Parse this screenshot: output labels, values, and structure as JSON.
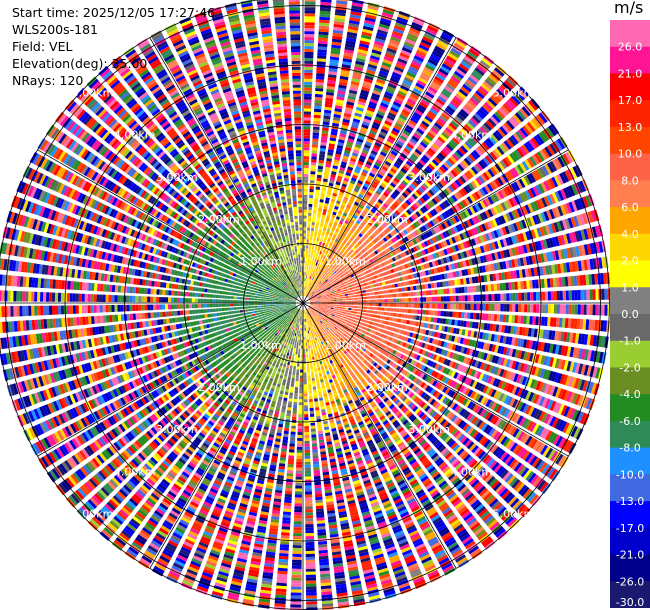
{
  "header": {
    "start_time": "Start time: 2025/12/05 17:27:46",
    "instrument": "WLS200s-181",
    "field": "Field: VEL",
    "elevation": "Elevation(deg): 35.00",
    "nrays": "NRays: 120"
  },
  "chart_data": {
    "type": "heatmap",
    "projection": "polar-ppi",
    "field": "VEL",
    "unit": "m/s",
    "nrays": 120,
    "elevation_deg": 35.0,
    "range_rings_km": [
      1,
      2,
      3,
      4,
      5
    ],
    "range_ring_labels": [
      "1.00km",
      "2.00km",
      "3.00km",
      "4.00km",
      "5.00km"
    ],
    "max_range_km": 5.15,
    "colorbar": {
      "unit": "m/s",
      "tick_labels": [
        "26.0",
        "21.0",
        "17.0",
        "13.0",
        "10.0",
        "8.0",
        "6.0",
        "4.0",
        "2.0",
        "1.0",
        "0.0",
        "-1.0",
        "-2.0",
        "-4.0",
        "-6.0",
        "-8.0",
        "-10.0",
        "-13.0",
        "-17.0",
        "-21.0",
        "-26.0",
        "-30.0"
      ],
      "bins": [
        {
          "max": 30,
          "color": "#ff69b4"
        },
        {
          "max": 26,
          "color": "#ff1493"
        },
        {
          "max": 21,
          "color": "#ff0000"
        },
        {
          "max": 17,
          "color": "#ff2400"
        },
        {
          "max": 13,
          "color": "#ff4500"
        },
        {
          "max": 10,
          "color": "#ff6347"
        },
        {
          "max": 8,
          "color": "#ff7f50"
        },
        {
          "max": 6,
          "color": "#ffa500"
        },
        {
          "max": 4,
          "color": "#ffd700"
        },
        {
          "max": 2,
          "color": "#ffff00"
        },
        {
          "max": 1,
          "color": "#808080"
        },
        {
          "max": 0,
          "color": "#696969"
        },
        {
          "max": -1,
          "color": "#9acd32"
        },
        {
          "max": -2,
          "color": "#6b8e23"
        },
        {
          "max": -4,
          "color": "#228b22"
        },
        {
          "max": -6,
          "color": "#2e8b57"
        },
        {
          "max": -8,
          "color": "#1e90ff"
        },
        {
          "max": -10,
          "color": "#4169e1"
        },
        {
          "max": -13,
          "color": "#0000ff"
        },
        {
          "max": -17,
          "color": "#0000cd"
        },
        {
          "max": -21,
          "color": "#00008b"
        },
        {
          "max": -26,
          "color": "#191970"
        }
      ]
    }
  }
}
